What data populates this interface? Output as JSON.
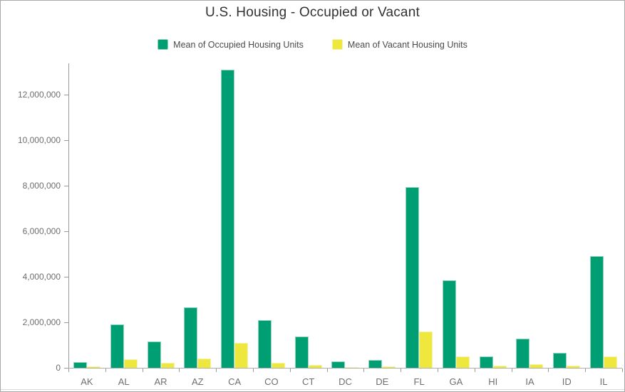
{
  "header": {
    "title": "U.S. Housing - Occupied or Vacant"
  },
  "legend": {
    "items": [
      {
        "label": "Mean of Occupied Housing Units",
        "color": "#009e73",
        "border_color": "#8fd4ba"
      },
      {
        "label": "Mean of Vacant Housing Units",
        "color": "#ede73e",
        "border_color": "#f6f2a8"
      }
    ]
  },
  "chart_data": {
    "type": "bar",
    "title": "U.S. Housing - Occupied or Vacant",
    "categories": [
      "AK",
      "AL",
      "AR",
      "AZ",
      "CA",
      "CO",
      "CT",
      "DC",
      "DE",
      "FL",
      "GA",
      "HI",
      "IA",
      "ID",
      "IL"
    ],
    "series": [
      {
        "name": "Mean of Occupied Housing Units",
        "color": "#009e73",
        "border_color": "#8fd4ba",
        "values": [
          250000,
          1900000,
          1170000,
          2650000,
          13100000,
          2080000,
          1380000,
          270000,
          350000,
          7950000,
          3850000,
          490000,
          1280000,
          650000,
          4900000
        ]
      },
      {
        "name": "Mean of Vacant Housing Units",
        "color": "#ede73e",
        "border_color": "#f6f2a8",
        "values": [
          70000,
          385000,
          220000,
          410000,
          1090000,
          230000,
          135000,
          25000,
          60000,
          1590000,
          510000,
          80000,
          170000,
          90000,
          500000
        ]
      }
    ],
    "xlabel": "",
    "ylabel": "",
    "ylim": [
      0,
      13312500
    ],
    "y_ticks": [
      {
        "value": 0,
        "label": "0"
      },
      {
        "value": 2000000,
        "label": "2,000,000"
      },
      {
        "value": 4000000,
        "label": "4,000,000"
      },
      {
        "value": 6000000,
        "label": "6,000,000"
      },
      {
        "value": 8000000,
        "label": "8,000,000"
      },
      {
        "value": 10000000,
        "label": "10,000,000"
      },
      {
        "value": 12000000,
        "label": "12,000,000"
      }
    ],
    "legend_position": "top",
    "grid": false,
    "axis_color": "#9b9b9b",
    "tick_label_color": "#6e6e6e"
  }
}
